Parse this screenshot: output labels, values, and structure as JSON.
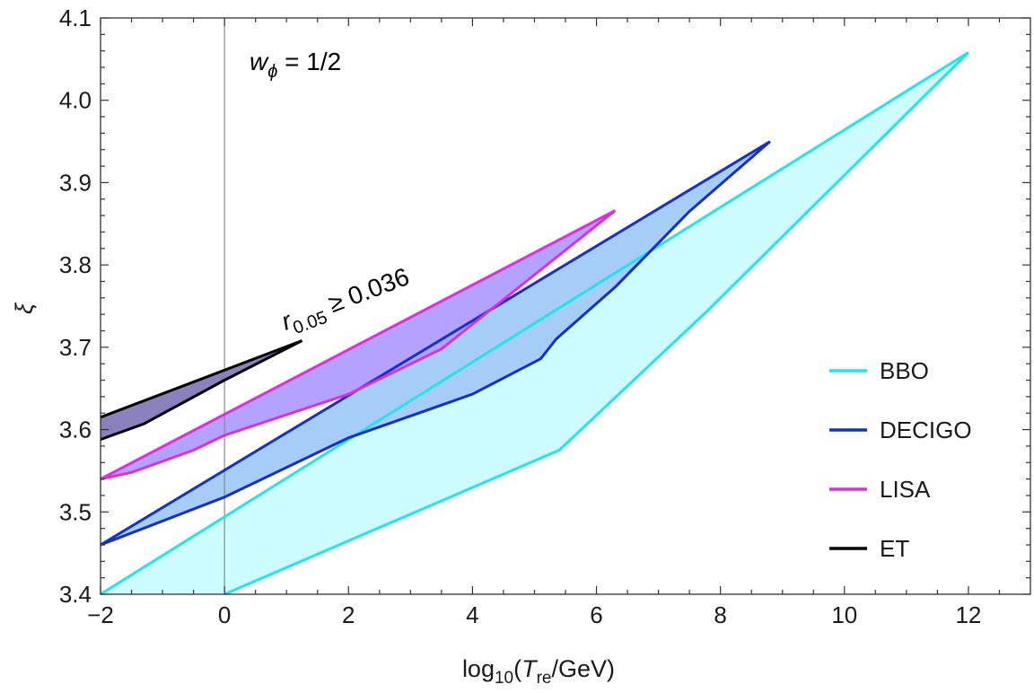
{
  "chart_data": {
    "type": "area",
    "title": "",
    "xlabel": {
      "base": "log",
      "sub1": "10",
      "mid": "(",
      "italic": "T",
      "sub2": "re",
      "tail": "/GeV)"
    },
    "ylabel": "ξ",
    "xlim": [
      -2,
      13
    ],
    "ylim": [
      3.4,
      4.1
    ],
    "xticks": [
      -2,
      0,
      2,
      4,
      6,
      8,
      10,
      12
    ],
    "xtick_labels": [
      "−2",
      "0",
      "2",
      "4",
      "6",
      "8",
      "10",
      "12"
    ],
    "yticks": [
      3.4,
      3.5,
      3.6,
      3.7,
      3.8,
      3.9,
      4.0,
      4.1
    ],
    "ytick_labels": [
      "3.4",
      "3.5",
      "3.6",
      "3.7",
      "3.8",
      "3.9",
      "4.0",
      "4.1"
    ],
    "vline_x": 0,
    "annotations": {
      "w_label": {
        "main": "w",
        "sub": "ϕ",
        "rest": " = 1/2"
      },
      "r_label": {
        "main": "r",
        "sub": "0.05",
        "rest": " ≥ 0.036"
      }
    },
    "series": [
      {
        "name": "BBO",
        "color": "#22e5ea",
        "fill": "#ccfcfd",
        "upper": [
          [
            -2,
            3.4
          ],
          [
            12.0,
            4.058
          ]
        ],
        "lower": [
          [
            0.0,
            3.4
          ],
          [
            5.4,
            3.575
          ],
          [
            7.8,
            3.745
          ],
          [
            12.0,
            4.058
          ]
        ]
      },
      {
        "name": "DECIGO",
        "color": "#1430c8",
        "fill": "#a6cdf8",
        "upper": [
          [
            -2,
            3.46
          ],
          [
            8.8,
            3.95
          ]
        ],
        "lower": [
          [
            -2,
            3.46
          ],
          [
            0,
            3.518
          ],
          [
            2,
            3.59
          ],
          [
            4,
            3.643
          ],
          [
            5.1,
            3.686
          ],
          [
            5.35,
            3.71
          ],
          [
            6.3,
            3.773
          ],
          [
            7.5,
            3.865
          ],
          [
            8.8,
            3.95
          ]
        ]
      },
      {
        "name": "LISA",
        "color": "#e02ce0",
        "fill": "#b3a2ff",
        "upper": [
          [
            -2,
            3.54
          ],
          [
            6.3,
            3.866
          ]
        ],
        "lower": [
          [
            -2,
            3.54
          ],
          [
            -1.5,
            3.548
          ],
          [
            -0.5,
            3.575
          ],
          [
            0,
            3.593
          ],
          [
            2,
            3.643
          ],
          [
            3.5,
            3.698
          ],
          [
            6.3,
            3.866
          ]
        ]
      },
      {
        "name": "ET",
        "color": "#000000",
        "fill": "#8a80bb",
        "upper": [
          [
            -2,
            3.615
          ],
          [
            1.25,
            3.708
          ]
        ],
        "lower": [
          [
            -2,
            3.588
          ],
          [
            -1.3,
            3.607
          ],
          [
            0,
            3.66
          ],
          [
            1.25,
            3.708
          ]
        ]
      }
    ],
    "legend": {
      "placement": "right",
      "entries": [
        "BBO",
        "DECIGO",
        "LISA",
        "ET"
      ]
    }
  }
}
